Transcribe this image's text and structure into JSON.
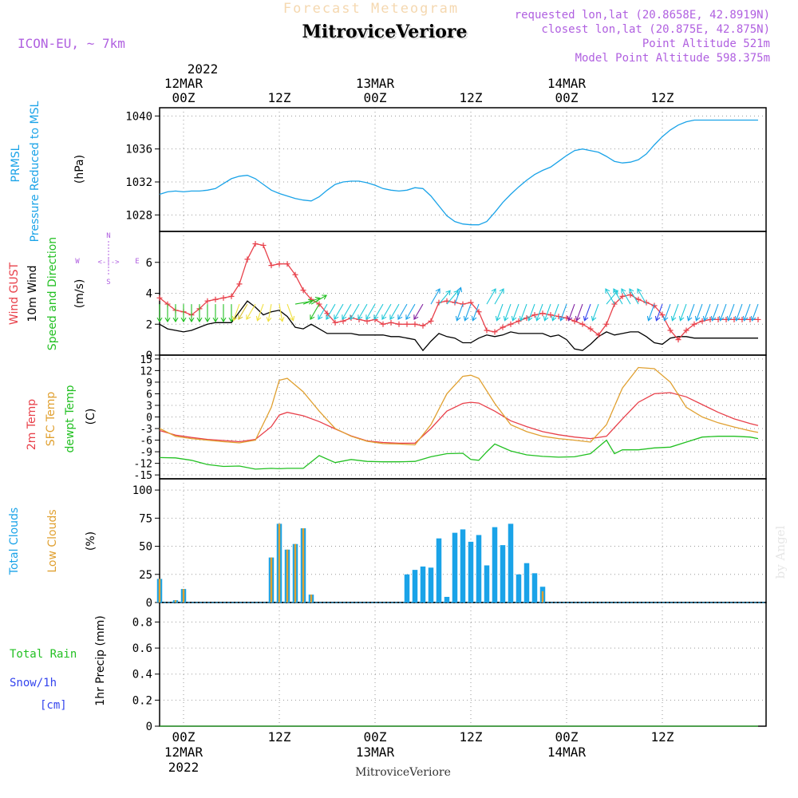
{
  "header": {
    "ghost_title": "Forecast Meteogram",
    "location": "MitroviceVeriore",
    "model": "ICON-EU, ~ 7km",
    "requested": "requested lon,lat (20.8658E, 42.8919N)",
    "closest": "closest lon,lat (20.875E, 42.875N)",
    "point_altitude": "Point Altitude 521m",
    "model_altitude": "Model Point Altitude 598.375m",
    "watermark": "by Angel",
    "footer_location": "MitroviceVeriore"
  },
  "time_axis": {
    "top_year": "2022",
    "labels": [
      {
        "hour": 0,
        "top": "12MAR",
        "tick": "00Z"
      },
      {
        "hour": 12,
        "top": "",
        "tick": "12Z"
      },
      {
        "hour": 24,
        "top": "13MAR",
        "tick": "00Z"
      },
      {
        "hour": 36,
        "top": "",
        "tick": "12Z"
      },
      {
        "hour": 48,
        "top": "14MAR",
        "tick": "00Z"
      },
      {
        "hour": 60,
        "top": "",
        "tick": "12Z"
      }
    ],
    "bottom_dates": [
      {
        "hour": 0,
        "line1": "12MAR",
        "line2": "2022"
      },
      {
        "hour": 24,
        "line1": "13MAR",
        "line2": ""
      },
      {
        "hour": 48,
        "line1": "14MAR",
        "line2": ""
      }
    ],
    "x_range": [
      -3,
      73
    ]
  },
  "panels": {
    "pressure": {
      "label1": "PRMSL",
      "label2": "Pressure Reduced to MSL",
      "unit": "(hPa)",
      "ticks": [
        "1040",
        "1036",
        "1032",
        "1028"
      ],
      "color": "#1aa3e8"
    },
    "wind": {
      "label_gust": "Wind GUST",
      "label_wind1": "10m Wind",
      "label_wind2": "Speed and Direction",
      "unit": "(m/s)",
      "ticks": [
        "6",
        "4",
        "2",
        "0"
      ],
      "compass_n": "N",
      "compass_s": "S",
      "compass_w": "W",
      "compass_e": "E",
      "compass_arrows": "<-|->"
    },
    "temp": {
      "label_2m": "2m Temp",
      "label_sfc": "SFC Temp",
      "label_dew": "dewpt Temp",
      "unit": "(C)",
      "ticks": [
        "15",
        "12",
        "9",
        "6",
        "3",
        "0",
        "-3",
        "-6",
        "-9",
        "-12",
        "-15"
      ]
    },
    "clouds": {
      "label_total": "Total Clouds",
      "label_low": "Low Clouds",
      "unit": "(%)",
      "ticks": [
        "100",
        "75",
        "50",
        "25",
        "0"
      ]
    },
    "precip": {
      "label_rain": "Total  Rain",
      "label_snow": "Snow/1h",
      "label_cm": "[cm]",
      "unit": "1hr Precip (mm)",
      "ticks": [
        "0.8",
        "0.6",
        "0.4",
        "0.2",
        "0"
      ]
    }
  },
  "colors": {
    "pressure": "#1aa3e8",
    "gust": "#e8404a",
    "wind": "#000000",
    "t2m": "#e8404a",
    "sfc": "#e0a030",
    "dew": "#22c022",
    "total_clouds": "#1aa3e8",
    "low_clouds": "#e0a030",
    "rain": "#22c022",
    "snow": "#3344ee",
    "purple": "#b060e0"
  },
  "chart_data": {
    "type": "line",
    "pressure_hpa": {
      "x": [
        -3,
        -2,
        -1,
        0,
        1,
        2,
        3,
        4,
        5,
        6,
        7,
        8,
        9,
        10,
        11,
        12,
        13,
        14,
        15,
        16,
        17,
        18,
        19,
        20,
        21,
        22,
        23,
        24,
        25,
        26,
        27,
        28,
        29,
        30,
        31,
        32,
        33,
        34,
        35,
        36,
        37,
        38,
        39,
        40,
        41,
        42,
        43,
        44,
        45,
        46,
        47,
        48,
        49,
        50,
        51,
        52,
        53,
        54,
        55,
        56,
        57,
        58,
        59,
        60,
        61,
        62,
        63,
        64,
        65,
        66,
        67,
        68,
        69,
        70,
        71,
        72
      ],
      "y": [
        1030.5,
        1030.8,
        1030.9,
        1030.8,
        1030.9,
        1030.9,
        1031.0,
        1031.2,
        1031.8,
        1032.4,
        1032.7,
        1032.8,
        1032.4,
        1031.7,
        1031.0,
        1030.6,
        1030.3,
        1030.0,
        1029.8,
        1029.7,
        1030.2,
        1031.0,
        1031.7,
        1032.0,
        1032.1,
        1032.1,
        1031.9,
        1031.6,
        1031.2,
        1031.0,
        1030.9,
        1031.0,
        1031.3,
        1031.2,
        1030.3,
        1029.1,
        1027.9,
        1027.2,
        1026.9,
        1026.8,
        1026.8,
        1027.2,
        1028.3,
        1029.5,
        1030.5,
        1031.4,
        1032.2,
        1032.9,
        1033.4,
        1033.8,
        1034.5,
        1035.2,
        1035.8,
        1036.0,
        1035.8,
        1035.6,
        1035.1,
        1034.5,
        1034.3,
        1034.4,
        1034.7,
        1035.4,
        1036.5,
        1037.5,
        1038.3,
        1038.9,
        1039.3,
        1039.5,
        1039.5,
        1039.5,
        1039.5,
        1039.5,
        1039.5,
        1039.5,
        1039.5,
        1039.5
      ],
      "ylim": [
        1026,
        1041
      ]
    },
    "gust_ms": {
      "x": [
        -3,
        -2,
        -1,
        0,
        1,
        2,
        3,
        4,
        5,
        6,
        7,
        8,
        9,
        10,
        11,
        12,
        13,
        14,
        15,
        16,
        17,
        18,
        19,
        20,
        21,
        22,
        23,
        24,
        25,
        26,
        27,
        28,
        29,
        30,
        31,
        32,
        33,
        34,
        35,
        36,
        37,
        38,
        39,
        40,
        41,
        42,
        43,
        44,
        45,
        46,
        47,
        48,
        49,
        50,
        51,
        52,
        53,
        54,
        55,
        56,
        57,
        58,
        59,
        60,
        61,
        62,
        63,
        64,
        65,
        66,
        67,
        68,
        69,
        70,
        71,
        72
      ],
      "y": [
        3.7,
        3.3,
        2.9,
        2.8,
        2.6,
        3.0,
        3.5,
        3.6,
        3.7,
        3.8,
        4.6,
        6.2,
        7.2,
        7.1,
        5.8,
        5.9,
        5.9,
        5.2,
        4.2,
        3.6,
        3.3,
        2.7,
        2.1,
        2.2,
        2.4,
        2.3,
        2.2,
        2.3,
        2.0,
        2.1,
        2.0,
        2.0,
        2.0,
        1.9,
        2.2,
        3.4,
        3.5,
        3.4,
        3.3,
        3.4,
        2.8,
        1.6,
        1.5,
        1.8,
        2.0,
        2.2,
        2.4,
        2.6,
        2.7,
        2.6,
        2.5,
        2.4,
        2.2,
        2.0,
        1.7,
        1.3,
        2.0,
        3.3,
        3.8,
        3.9,
        3.6,
        3.4,
        3.2,
        2.6,
        1.6,
        1.0,
        1.6,
        2.0,
        2.2,
        2.3,
        2.3,
        2.3,
        2.3,
        2.3,
        2.3,
        2.3
      ],
      "ylim": [
        0,
        8
      ]
    },
    "wind10m_ms": {
      "x": [
        -3,
        -2,
        -1,
        0,
        1,
        2,
        3,
        4,
        5,
        6,
        7,
        8,
        9,
        10,
        11,
        12,
        13,
        14,
        15,
        16,
        17,
        18,
        19,
        20,
        21,
        22,
        23,
        24,
        25,
        26,
        27,
        28,
        29,
        30,
        31,
        32,
        33,
        34,
        35,
        36,
        37,
        38,
        39,
        40,
        41,
        42,
        43,
        44,
        45,
        46,
        47,
        48,
        49,
        50,
        51,
        52,
        53,
        54,
        55,
        56,
        57,
        58,
        59,
        60,
        61,
        62,
        63,
        64,
        65,
        66,
        67,
        68,
        69,
        70,
        71,
        72
      ],
      "y": [
        2.0,
        1.7,
        1.6,
        1.5,
        1.6,
        1.8,
        2.0,
        2.1,
        2.1,
        2.1,
        2.8,
        3.5,
        3.1,
        2.6,
        2.8,
        2.9,
        2.5,
        1.8,
        1.7,
        2.0,
        1.7,
        1.4,
        1.4,
        1.4,
        1.4,
        1.3,
        1.3,
        1.3,
        1.3,
        1.2,
        1.2,
        1.1,
        1.0,
        0.3,
        0.9,
        1.4,
        1.2,
        1.1,
        0.8,
        0.8,
        1.1,
        1.3,
        1.2,
        1.3,
        1.5,
        1.4,
        1.4,
        1.4,
        1.4,
        1.2,
        1.3,
        1.0,
        0.4,
        0.3,
        0.7,
        1.2,
        1.5,
        1.3,
        1.4,
        1.5,
        1.5,
        1.2,
        0.8,
        0.7,
        1.1,
        1.2,
        1.2,
        1.1,
        1.1,
        1.1,
        1.1,
        1.1,
        1.1,
        1.1,
        1.1,
        1.1
      ],
      "ylim": [
        0,
        8
      ]
    },
    "t2m_c": {
      "x": [
        -3,
        -1,
        1,
        3,
        5,
        7,
        9,
        11,
        12,
        13,
        15,
        17,
        19,
        21,
        23,
        25,
        27,
        29,
        31,
        33,
        35,
        36,
        37,
        39,
        41,
        43,
        45,
        47,
        49,
        51,
        53,
        55,
        57,
        59,
        61,
        63,
        65,
        67,
        69,
        71,
        72
      ],
      "y": [
        -3.5,
        -4.7,
        -5.3,
        -5.8,
        -6.1,
        -6.4,
        -5.8,
        -2.5,
        0.5,
        1.2,
        0.3,
        -1.2,
        -3.1,
        -4.9,
        -6.2,
        -6.6,
        -6.8,
        -6.8,
        -3.0,
        1.5,
        3.5,
        3.8,
        3.6,
        1.5,
        -1.0,
        -2.5,
        -3.8,
        -4.6,
        -5.2,
        -5.6,
        -5.0,
        -0.5,
        3.8,
        6.0,
        6.3,
        5.2,
        3.2,
        1.2,
        -0.5,
        -1.7,
        -2.2
      ],
      "ylim": [
        -16,
        16
      ]
    },
    "sfc_c": {
      "x": [
        -3,
        -1,
        1,
        3,
        5,
        7,
        9,
        11,
        12,
        13,
        15,
        17,
        19,
        21,
        23,
        25,
        27,
        29,
        31,
        33,
        35,
        36,
        37,
        39,
        41,
        43,
        45,
        47,
        49,
        51,
        53,
        55,
        57,
        59,
        61,
        63,
        65,
        67,
        69,
        71,
        72
      ],
      "y": [
        -3.0,
        -5.0,
        -5.6,
        -6.0,
        -6.4,
        -6.7,
        -6.0,
        2.5,
        9.5,
        10.0,
        6.5,
        1.5,
        -3.0,
        -5.0,
        -6.3,
        -6.9,
        -7.0,
        -7.2,
        -2.0,
        6.0,
        10.5,
        10.8,
        10.0,
        3.5,
        -2.0,
        -3.8,
        -5.0,
        -5.6,
        -6.0,
        -6.5,
        -2.0,
        7.5,
        12.8,
        12.5,
        9.0,
        2.5,
        0.0,
        -1.5,
        -2.6,
        -3.6,
        -4.0
      ],
      "ylim": [
        -16,
        16
      ]
    },
    "dew_c": {
      "x": [
        -3,
        -1,
        1,
        3,
        5,
        7,
        9,
        11,
        12,
        13,
        15,
        17,
        19,
        21,
        23,
        25,
        27,
        29,
        31,
        33,
        35,
        36,
        37,
        38,
        39,
        41,
        43,
        45,
        47,
        49,
        51,
        53,
        54,
        55,
        57,
        59,
        61,
        63,
        65,
        67,
        69,
        71,
        72
      ],
      "y": [
        -10.5,
        -10.6,
        -11.2,
        -12.3,
        -12.8,
        -12.7,
        -13.5,
        -13.3,
        -13.4,
        -13.3,
        -13.3,
        -10.0,
        -11.8,
        -11.0,
        -11.5,
        -11.6,
        -11.6,
        -11.5,
        -10.3,
        -9.5,
        -9.4,
        -11.0,
        -11.2,
        -9.0,
        -7.0,
        -8.8,
        -9.8,
        -10.2,
        -10.4,
        -10.3,
        -9.5,
        -6.0,
        -9.5,
        -8.5,
        -8.5,
        -8.0,
        -7.8,
        -6.5,
        -5.2,
        -5.0,
        -5.0,
        -5.2,
        -5.6
      ],
      "ylim": [
        -16,
        16
      ]
    },
    "total_clouds_pct": {
      "x": [
        -3,
        -1,
        0,
        11,
        12,
        13,
        14,
        15,
        16,
        28,
        29,
        30,
        31,
        32,
        33,
        34,
        35,
        36,
        37,
        38,
        39,
        40,
        41,
        42,
        43,
        44,
        45,
        46,
        47
      ],
      "y": [
        21,
        2,
        12,
        40,
        70,
        47,
        52,
        66,
        7,
        25,
        29,
        32,
        31,
        57,
        5,
        62,
        65,
        54,
        60,
        33,
        67,
        51,
        70,
        25,
        35,
        26,
        14,
        0,
        0
      ],
      "ylim": [
        0,
        110
      ]
    },
    "low_clouds_pct": {
      "x": [
        -3,
        -1,
        0,
        11,
        12,
        13,
        14,
        15,
        16,
        28,
        29,
        30,
        31,
        32,
        33,
        34,
        35,
        36,
        37,
        38,
        39,
        40,
        41,
        42,
        43,
        44,
        45,
        46,
        47
      ],
      "y": [
        21,
        2,
        12,
        40,
        70,
        47,
        52,
        66,
        7,
        0,
        0,
        0,
        0,
        0,
        0,
        0,
        0,
        0,
        0,
        0,
        0,
        0,
        0,
        0,
        0,
        0,
        10,
        0,
        0
      ],
      "ylim": [
        0,
        110
      ]
    },
    "precip_mm": {
      "x": [
        -3,
        72
      ],
      "y": [
        0,
        0
      ],
      "ylim": [
        0,
        0.95
      ]
    },
    "wind_direction_arrows": {
      "hours": [
        -3,
        -2,
        -1,
        0,
        1,
        2,
        3,
        4,
        5,
        6,
        7,
        8,
        9,
        10,
        11,
        12,
        13,
        14,
        15,
        16,
        17,
        18,
        19,
        20,
        21,
        22,
        23,
        24,
        25,
        26,
        27,
        28,
        29,
        30,
        31,
        32,
        33,
        34,
        35,
        36,
        37,
        38,
        39,
        40,
        41,
        42,
        43,
        44,
        45,
        46,
        47,
        48,
        49,
        50,
        51,
        52,
        53,
        54,
        55,
        56,
        57,
        58,
        59,
        60,
        61,
        62,
        63,
        64,
        65,
        66,
        67,
        68,
        69,
        70,
        71,
        72
      ],
      "to_angle_deg": [
        180,
        180,
        180,
        180,
        180,
        180,
        180,
        180,
        180,
        180,
        200,
        210,
        210,
        200,
        190,
        170,
        160,
        80,
        70,
        60,
        210,
        210,
        210,
        210,
        210,
        210,
        210,
        210,
        210,
        210,
        210,
        210,
        210,
        210,
        30,
        40,
        40,
        20,
        200,
        200,
        200,
        30,
        30,
        200,
        200,
        200,
        200,
        200,
        200,
        200,
        200,
        200,
        200,
        200,
        200,
        200,
        40,
        330,
        330,
        330,
        330,
        330,
        200,
        200,
        200,
        200,
        200,
        200,
        200,
        200,
        200,
        200,
        200,
        200,
        200,
        200
      ],
      "color_speed_ms": [
        1.9,
        1.9,
        1.9,
        1.9,
        1.9,
        1.9,
        1.9,
        1.9,
        1.9,
        1.9,
        2.6,
        3.2,
        2.9,
        2.5,
        2.8,
        2.9,
        2.4,
        1.8,
        1.7,
        1.9,
        1.6,
        1.3,
        1.3,
        1.3,
        1.3,
        1.3,
        1.3,
        1.3,
        1.3,
        1.2,
        1.2,
        1.1,
        1.0,
        0.4,
        0.9,
        1.4,
        1.2,
        1.1,
        0.8,
        0.8,
        1.1,
        1.3,
        1.2,
        1.3,
        1.5,
        1.4,
        1.4,
        1.4,
        1.4,
        1.2,
        1.3,
        1.0,
        0.4,
        0.3,
        0.7,
        1.2,
        1.5,
        1.3,
        1.4,
        1.5,
        1.5,
        1.2,
        0.8,
        0.7,
        1.1,
        1.2,
        1.2,
        1.1,
        1.1,
        1.1,
        1.1,
        1.1,
        1.1,
        1.1,
        1.1,
        1.1
      ],
      "baseline_ms": 3.3
    }
  }
}
